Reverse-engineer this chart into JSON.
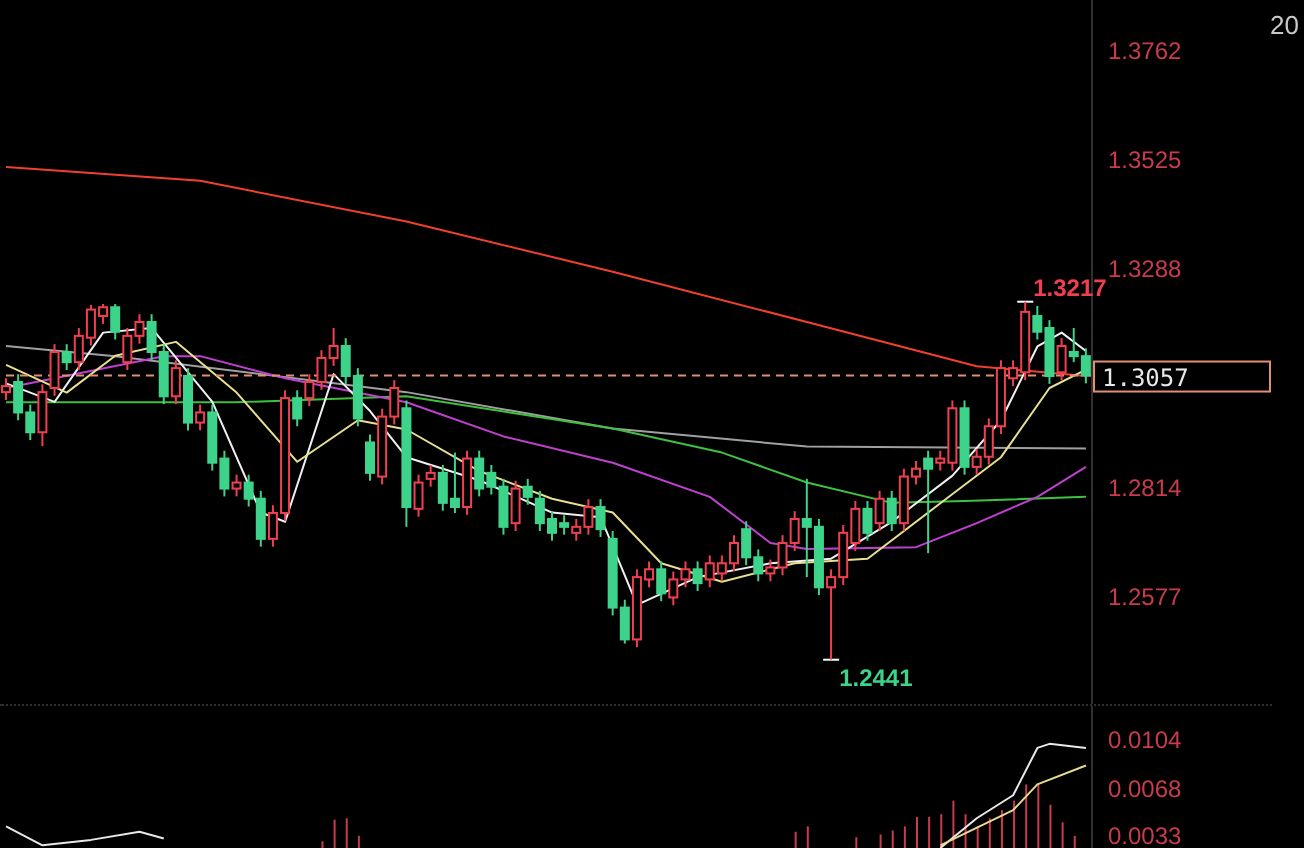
{
  "chart_data": [
    {
      "type": "candlestick",
      "categories": [
        null,
        null,
        null,
        null,
        null,
        null,
        null,
        null,
        null,
        null,
        null,
        null,
        null,
        null,
        null,
        null,
        null,
        null,
        null,
        null,
        null,
        null,
        null,
        null,
        null,
        null,
        null,
        null,
        null,
        null,
        null,
        null,
        null,
        null,
        null,
        null,
        null,
        null,
        null,
        null,
        null,
        null,
        null,
        null,
        null,
        null,
        null,
        null,
        null,
        null,
        null,
        null,
        null,
        null,
        null,
        null,
        null,
        null,
        null,
        null,
        null,
        null,
        null,
        null,
        null,
        null,
        null,
        null,
        null,
        null,
        null,
        null,
        null,
        null,
        null,
        null,
        null,
        null,
        null,
        null,
        null,
        null,
        null,
        null,
        null,
        null,
        null,
        null,
        null,
        null
      ],
      "ohlc": [
        [
          1.3021,
          1.3051,
          1.3004,
          1.3034
        ],
        [
          1.3043,
          1.306,
          1.296,
          1.2977
        ],
        [
          1.2977,
          1.2994,
          1.2917,
          1.2934
        ],
        [
          1.2934,
          1.3038,
          1.2904,
          1.3021
        ],
        [
          1.303,
          1.3125,
          1.3013,
          1.3108
        ],
        [
          1.3108,
          1.3125,
          1.3069,
          1.3086
        ],
        [
          1.3086,
          1.316,
          1.3069,
          1.3143
        ],
        [
          1.3139,
          1.321,
          1.3122,
          1.32
        ],
        [
          1.3186,
          1.3212,
          1.3169,
          1.3205
        ],
        [
          1.3205,
          1.3212,
          1.3135,
          1.3152
        ],
        [
          1.3086,
          1.316,
          1.3069,
          1.3143
        ],
        [
          1.3143,
          1.319,
          1.3126,
          1.3173
        ],
        [
          1.3173,
          1.319,
          1.3091,
          1.3108
        ],
        [
          1.3108,
          1.3125,
          1.2995,
          1.3012
        ],
        [
          1.3012,
          1.309,
          1.2995,
          1.3073
        ],
        [
          1.3056,
          1.3073,
          1.2938,
          1.2955
        ],
        [
          1.2955,
          1.2994,
          1.2938,
          1.2977
        ],
        [
          1.2977,
          1.2994,
          1.2851,
          1.2868
        ],
        [
          1.2877,
          1.2894,
          1.2795,
          1.2812
        ],
        [
          1.2812,
          1.2842,
          1.2795,
          1.2825
        ],
        [
          1.2825,
          1.2842,
          1.2773,
          1.279
        ],
        [
          1.279,
          1.2807,
          1.2686,
          1.2703
        ],
        [
          1.2703,
          1.2776,
          1.2686,
          1.2759
        ],
        [
          1.2759,
          1.3025,
          1.2742,
          1.3008
        ],
        [
          1.3008,
          1.3025,
          1.2947,
          1.2964
        ],
        [
          1.3008,
          1.306,
          1.2991,
          1.3043
        ],
        [
          1.3043,
          1.3112,
          1.3026,
          1.3095
        ],
        [
          1.3095,
          1.316,
          1.3078,
          1.3121
        ],
        [
          1.3121,
          1.3138,
          1.3039,
          1.3056
        ],
        [
          1.3056,
          1.3073,
          1.2947,
          1.2964
        ],
        [
          1.2912,
          1.2929,
          1.2829,
          1.2846
        ],
        [
          1.2838,
          1.2985,
          1.2821,
          1.2968
        ],
        [
          1.2968,
          1.3047,
          1.2951,
          1.303
        ],
        [
          1.2986,
          1.3003,
          1.2729,
          1.2772
        ],
        [
          1.2768,
          1.2842,
          1.2751,
          1.2825
        ],
        [
          1.2833,
          1.2863,
          1.2816,
          1.2846
        ],
        [
          1.2846,
          1.2863,
          1.2764,
          1.2781
        ],
        [
          1.279,
          1.289,
          1.2759,
          1.2772
        ],
        [
          1.2772,
          1.2894,
          1.2755,
          1.2877
        ],
        [
          1.2877,
          1.2894,
          1.2795,
          1.2812
        ],
        [
          1.2846,
          1.2863,
          1.2799,
          1.2816
        ],
        [
          1.2816,
          1.2833,
          1.2712,
          1.2729
        ],
        [
          1.2737,
          1.2829,
          1.272,
          1.2812
        ],
        [
          1.2816,
          1.2833,
          1.2777,
          1.2794
        ],
        [
          1.279,
          1.2807,
          1.272,
          1.2737
        ],
        [
          1.2746,
          1.2763,
          1.2699,
          1.2716
        ],
        [
          1.2737,
          1.2754,
          1.2712,
          1.2729
        ],
        [
          1.2716,
          1.2746,
          1.2699,
          1.2729
        ],
        [
          1.2729,
          1.2789,
          1.2712,
          1.2772
        ],
        [
          1.2772,
          1.2789,
          1.2707,
          1.2724
        ],
        [
          1.2703,
          1.272,
          1.2537,
          1.2554
        ],
        [
          1.2554,
          1.2571,
          1.2476,
          1.2485
        ],
        [
          1.2485,
          1.2637,
          1.2468,
          1.262
        ],
        [
          1.2615,
          1.2654,
          1.2598,
          1.2637
        ],
        [
          1.2637,
          1.2654,
          1.2568,
          1.2585
        ],
        [
          1.2576,
          1.2632,
          1.2559,
          1.2615
        ],
        [
          1.2615,
          1.2654,
          1.2598,
          1.2637
        ],
        [
          1.2637,
          1.2654,
          1.259,
          1.2607
        ],
        [
          1.2615,
          1.2667,
          1.2598,
          1.265
        ],
        [
          1.2628,
          1.2667,
          1.2611,
          1.265
        ],
        [
          1.265,
          1.2711,
          1.2633,
          1.2694
        ],
        [
          1.2724,
          1.2741,
          1.2646,
          1.2663
        ],
        [
          1.2663,
          1.268,
          1.2611,
          1.2628
        ],
        [
          1.2628,
          1.2658,
          1.2611,
          1.2641
        ],
        [
          1.2641,
          1.2711,
          1.2624,
          1.2694
        ],
        [
          1.2694,
          1.2763,
          1.2677,
          1.2746
        ],
        [
          1.2746,
          1.2833,
          1.262,
          1.2729
        ],
        [
          1.2729,
          1.2746,
          1.2581,
          1.2598
        ],
        [
          1.2598,
          1.2637,
          1.2441,
          1.262
        ],
        [
          1.262,
          1.2733,
          1.2603,
          1.2716
        ],
        [
          1.2694,
          1.2785,
          1.2677,
          1.2768
        ],
        [
          1.2768,
          1.2785,
          1.2699,
          1.2716
        ],
        [
          1.2737,
          1.2807,
          1.272,
          1.279
        ],
        [
          1.279,
          1.2807,
          1.272,
          1.2737
        ],
        [
          1.2737,
          1.2855,
          1.272,
          1.2838
        ],
        [
          1.2838,
          1.2872,
          1.2821,
          1.2855
        ],
        [
          1.2877,
          1.2894,
          1.2672,
          1.2855
        ],
        [
          1.2868,
          1.2894,
          1.2851,
          1.2877
        ],
        [
          1.2868,
          1.3003,
          1.2851,
          1.2986
        ],
        [
          1.2986,
          1.3003,
          1.2842,
          1.2859
        ],
        [
          1.2859,
          1.2898,
          1.2842,
          1.2881
        ],
        [
          1.2881,
          1.2964,
          1.2864,
          1.2947
        ],
        [
          1.2947,
          1.309,
          1.293,
          1.3073
        ],
        [
          1.3051,
          1.309,
          1.3034,
          1.3073
        ],
        [
          1.3064,
          1.3217,
          1.3047,
          1.3195
        ],
        [
          1.3186,
          1.3208,
          1.3135,
          1.3152
        ],
        [
          1.316,
          1.3177,
          1.3039,
          1.3056
        ],
        [
          1.3064,
          1.3138,
          1.3047,
          1.3121
        ],
        [
          1.3108,
          1.316,
          1.3086,
          1.3099
        ],
        [
          1.3099,
          1.3116,
          1.304,
          1.3057
        ]
      ],
      "colors": [
        "#f0404f",
        "#3ed38a",
        "#3ed38a",
        "#f0404f",
        "#f0404f",
        "#3ed38a",
        "#f0404f",
        "#f0404f",
        "#f0404f",
        "#3ed38a",
        "#f0404f",
        "#f0404f",
        "#3ed38a",
        "#3ed38a",
        "#f0404f",
        "#3ed38a",
        "#f0404f",
        "#3ed38a",
        "#3ed38a",
        "#f0404f",
        "#3ed38a",
        "#3ed38a",
        "#f0404f",
        "#f0404f",
        "#3ed38a",
        "#f0404f",
        "#f0404f",
        "#f0404f",
        "#3ed38a",
        "#3ed38a",
        "#3ed38a",
        "#f0404f",
        "#f0404f",
        "#3ed38a",
        "#f0404f",
        "#f0404f",
        "#3ed38a",
        "#3ed38a",
        "#f0404f",
        "#3ed38a",
        "#3ed38a",
        "#3ed38a",
        "#f0404f",
        "#3ed38a",
        "#3ed38a",
        "#3ed38a",
        "#3ed38a",
        "#f0404f",
        "#f0404f",
        "#3ed38a",
        "#3ed38a",
        "#3ed38a",
        "#f0404f",
        "#f0404f",
        "#3ed38a",
        "#f0404f",
        "#f0404f",
        "#3ed38a",
        "#f0404f",
        "#f0404f",
        "#f0404f",
        "#3ed38a",
        "#3ed38a",
        "#f0404f",
        "#f0404f",
        "#f0404f",
        "#3ed38a",
        "#3ed38a",
        "#f0404f",
        "#f0404f",
        "#f0404f",
        "#3ed38a",
        "#f0404f",
        "#3ed38a",
        "#f0404f",
        "#f0404f",
        "#3ed38a",
        "#f0404f",
        "#f0404f",
        "#3ed38a",
        "#f0404f",
        "#f0404f",
        "#f0404f",
        "#f0404f",
        "#f0404f",
        "#3ed38a",
        "#3ed38a",
        "#f0404f",
        "#3ed38a",
        "#3ed38a"
      ],
      "series": [
        {
          "type": "line",
          "color": "#f04030",
          "values": [
            1.3509,
            null,
            null,
            null,
            null,
            null,
            null,
            null,
            null,
            null,
            null,
            null,
            null,
            null,
            null,
            null,
            1.3479,
            null,
            null,
            null,
            null,
            null,
            null,
            null,
            null,
            null,
            null,
            null,
            null,
            null,
            null,
            null,
            null,
            1.3391,
            null,
            null,
            null,
            null,
            null,
            null,
            null,
            null,
            null,
            null,
            null,
            null,
            null,
            null,
            null,
            null,
            1.3282,
            null,
            null,
            null,
            null,
            null,
            null,
            null,
            null,
            null,
            null,
            null,
            null,
            null,
            null,
            null,
            1.3173,
            null,
            null,
            null,
            null,
            null,
            null,
            null,
            null,
            null,
            null,
            null,
            null,
            null,
            1.3077,
            null,
            null,
            null,
            null,
            null,
            null,
            null,
            null,
            1.3056
          ]
        },
        {
          "type": "line",
          "color": "#a0a0a0",
          "values": [
            1.3121,
            null,
            null,
            null,
            null,
            null,
            null,
            null,
            null,
            1.3099,
            null,
            null,
            null,
            null,
            null,
            null,
            null,
            null,
            null,
            null,
            null,
            null,
            null,
            null,
            null,
            null,
            null,
            null,
            null,
            null,
            null,
            null,
            null,
            1.3021,
            null,
            null,
            null,
            null,
            null,
            null,
            null,
            null,
            null,
            null,
            null,
            null,
            null,
            null,
            null,
            null,
            1.2942,
            null,
            null,
            null,
            null,
            null,
            null,
            null,
            null,
            null,
            null,
            null,
            null,
            null,
            null,
            null,
            1.2903,
            null,
            null,
            null,
            null,
            null,
            null,
            null,
            null,
            null,
            null,
            null,
            null,
            null,
            null,
            null,
            null,
            null,
            null,
            null,
            null,
            null,
            null,
            1.2899
          ]
        },
        {
          "type": "line",
          "color": "#40c040",
          "values": [
            1.2999,
            null,
            null,
            null,
            null,
            null,
            null,
            null,
            null,
            null,
            null,
            null,
            null,
            null,
            null,
            null,
            null,
            null,
            null,
            1.2999,
            null,
            null,
            null,
            null,
            null,
            null,
            null,
            null,
            null,
            null,
            null,
            null,
            null,
            1.3012,
            null,
            null,
            null,
            null,
            null,
            null,
            null,
            null,
            null,
            null,
            null,
            null,
            null,
            null,
            null,
            null,
            1.2942,
            null,
            null,
            null,
            null,
            null,
            null,
            null,
            null,
            1.289,
            null,
            null,
            null,
            null,
            null,
            null,
            1.2825,
            null,
            null,
            null,
            null,
            null,
            null,
            1.2781,
            null,
            null,
            null,
            null,
            null,
            1.2785,
            null,
            null,
            null,
            null,
            null,
            null,
            null,
            null,
            null,
            1.2794
          ]
        },
        {
          "type": "line",
          "color": "#c040d0",
          "values": [
            1.303,
            null,
            null,
            null,
            null,
            null,
            null,
            null,
            null,
            null,
            null,
            null,
            null,
            1.3099,
            null,
            null,
            1.3099,
            null,
            null,
            null,
            null,
            null,
            null,
            1.3051,
            null,
            null,
            null,
            null,
            null,
            null,
            null,
            null,
            null,
            1.2999,
            null,
            null,
            null,
            null,
            null,
            null,
            null,
            1.2925,
            null,
            null,
            null,
            null,
            null,
            null,
            null,
            null,
            1.2868,
            null,
            null,
            null,
            null,
            null,
            null,
            null,
            1.2794,
            null,
            null,
            null,
            null,
            1.2694,
            null,
            null,
            1.2681,
            null,
            null,
            null,
            null,
            null,
            null,
            null,
            null,
            1.2685,
            null,
            null,
            null,
            null,
            1.2737,
            null,
            null,
            null,
            null,
            1.2794,
            null,
            null,
            null,
            1.2859
          ]
        },
        {
          "type": "line",
          "color": "#f0f0f0",
          "values": [
            1.304,
            null,
            null,
            null,
            1.3,
            null,
            null,
            null,
            1.315,
            null,
            null,
            null,
            1.316,
            null,
            null,
            null,
            null,
            1.3,
            null,
            null,
            null,
            1.276,
            null,
            1.274,
            null,
            null,
            null,
            1.306,
            null,
            null,
            1.298,
            null,
            null,
            1.288,
            null,
            null,
            null,
            null,
            null,
            1.283,
            null,
            null,
            null,
            null,
            null,
            1.276,
            null,
            null,
            null,
            1.275,
            null,
            null,
            1.256,
            null,
            null,
            null,
            null,
            1.262,
            null,
            null,
            null,
            null,
            null,
            1.265,
            null,
            null,
            null,
            null,
            1.266,
            null,
            null,
            null,
            null,
            1.274,
            null,
            null,
            null,
            null,
            1.284,
            null,
            null,
            null,
            1.296,
            null,
            null,
            1.312,
            null,
            1.315,
            null,
            1.311
          ]
        },
        {
          "type": "line",
          "color": "#e8e090",
          "values": [
            1.308,
            null,
            null,
            null,
            null,
            1.302,
            null,
            null,
            null,
            1.31,
            null,
            null,
            null,
            null,
            1.313,
            null,
            null,
            null,
            null,
            1.302,
            null,
            null,
            null,
            null,
            1.287,
            null,
            null,
            null,
            null,
            1.296,
            null,
            null,
            null,
            1.294,
            null,
            null,
            null,
            null,
            null,
            1.285,
            null,
            null,
            null,
            null,
            null,
            1.279,
            null,
            null,
            null,
            null,
            1.276,
            null,
            null,
            null,
            1.265,
            null,
            null,
            null,
            null,
            1.261,
            null,
            null,
            null,
            null,
            null,
            1.265,
            null,
            null,
            null,
            null,
            null,
            1.266,
            null,
            null,
            null,
            null,
            null,
            1.278,
            null,
            null,
            null,
            null,
            1.288,
            null,
            null,
            null,
            1.303,
            null,
            null,
            1.307
          ]
        }
      ],
      "ylim": [
        1.2345,
        1.3871
      ],
      "yticks": [
        1.2577,
        1.2814,
        1.3288,
        1.3525,
        1.3762
      ],
      "tick_labels": "y",
      "ref_lines": [
        {
          "axis": "y",
          "value": 1.3057,
          "label": "1.3057",
          "color": "#e09070",
          "line_style": "dashed"
        }
      ],
      "annotations": [
        "1.3217",
        "1.2441",
        "20"
      ]
    },
    {
      "type": "bar",
      "categories": [
        null,
        null,
        null,
        null,
        null,
        null,
        null,
        null,
        null,
        null,
        null,
        null,
        null,
        null,
        null,
        null,
        null,
        null,
        null,
        null,
        null,
        null,
        null,
        null,
        null,
        null,
        null,
        null,
        null,
        null,
        null,
        null,
        null,
        null,
        null,
        null,
        null,
        null,
        null,
        null,
        null,
        null,
        null,
        null,
        null,
        null,
        null,
        null,
        null,
        null,
        null,
        null,
        null,
        null,
        null,
        null,
        null,
        null,
        null,
        null,
        null,
        null,
        null,
        null,
        null,
        null,
        null,
        null,
        null,
        null,
        null,
        null,
        null,
        null,
        null,
        null,
        null,
        null,
        null,
        null,
        null,
        null,
        null,
        null,
        null,
        null,
        null,
        null,
        null,
        null
      ],
      "series": [
        {
          "type": "bar",
          "color": "#c83c4c",
          "values": [
            null,
            null,
            null,
            null,
            null,
            null,
            null,
            null,
            null,
            null,
            null,
            null,
            null,
            null,
            null,
            null,
            null,
            null,
            null,
            null,
            null,
            null,
            null,
            null,
            null,
            null,
            0.0029,
            0.0045,
            0.0046,
            0.0033,
            null,
            null,
            null,
            null,
            null,
            null,
            null,
            null,
            null,
            null,
            null,
            null,
            null,
            null,
            null,
            null,
            null,
            null,
            null,
            null,
            null,
            null,
            null,
            null,
            null,
            null,
            null,
            null,
            null,
            null,
            null,
            null,
            null,
            null,
            null,
            0.0036,
            0.004,
            null,
            null,
            null,
            0.0032,
            null,
            0.0034,
            0.0037,
            0.004,
            0.0047,
            0.0047,
            0.0049,
            0.0059,
            0.0049,
            0.004,
            0.0046,
            0.0052,
            0.0059,
            0.0071,
            0.0071,
            0.0056,
            0.0043,
            0.0033,
            null
          ]
        },
        {
          "type": "line",
          "color": "#e8e8e8",
          "values": [
            0.004,
            null,
            null,
            0.0026,
            null,
            null,
            null,
            0.003,
            null,
            null,
            null,
            0.0036,
            null,
            0.0031,
            null,
            null,
            null,
            null,
            null,
            null,
            null,
            null,
            null,
            null,
            null,
            null,
            null,
            null,
            null,
            null,
            null,
            null,
            null,
            null,
            null,
            null,
            null,
            null,
            null,
            null,
            null,
            null,
            null,
            null,
            null,
            null,
            null,
            null,
            null,
            null,
            null,
            null,
            null,
            null,
            null,
            null,
            null,
            null,
            null,
            null,
            null,
            null,
            null,
            null,
            null,
            null,
            null,
            null,
            null,
            null,
            null,
            null,
            null,
            null,
            null,
            null,
            null,
            null,
            null,
            null,
            null,
            null,
            null,
            null,
            null,
            null,
            null,
            null,
            null,
            null
          ]
        },
        {
          "type": "line",
          "color": "#e8e8e8",
          "values": [
            null,
            null,
            null,
            null,
            null,
            null,
            null,
            null,
            null,
            null,
            null,
            null,
            null,
            null,
            null,
            null,
            null,
            null,
            null,
            null,
            null,
            null,
            null,
            null,
            null,
            null,
            null,
            null,
            null,
            null,
            null,
            null,
            null,
            null,
            null,
            null,
            null,
            null,
            null,
            null,
            null,
            null,
            null,
            null,
            null,
            null,
            null,
            null,
            null,
            null,
            null,
            null,
            null,
            null,
            null,
            null,
            null,
            null,
            null,
            null,
            null,
            null,
            null,
            null,
            null,
            null,
            null,
            null,
            null,
            null,
            null,
            null,
            null,
            null,
            null,
            null,
            null,
            0.0024,
            null,
            null,
            0.0046,
            null,
            null,
            0.0063,
            null,
            0.0098,
            0.0101,
            null,
            null,
            0.0098
          ]
        },
        {
          "type": "line",
          "color": "#e8d890",
          "values": [
            null,
            null,
            null,
            null,
            null,
            null,
            null,
            null,
            null,
            null,
            null,
            null,
            null,
            null,
            null,
            null,
            null,
            null,
            null,
            null,
            null,
            null,
            null,
            null,
            null,
            null,
            null,
            null,
            null,
            null,
            null,
            null,
            null,
            null,
            null,
            null,
            null,
            null,
            null,
            null,
            null,
            null,
            null,
            null,
            null,
            null,
            null,
            null,
            null,
            null,
            null,
            null,
            null,
            null,
            null,
            null,
            null,
            null,
            null,
            null,
            null,
            null,
            null,
            null,
            null,
            null,
            null,
            null,
            null,
            null,
            null,
            null,
            null,
            null,
            null,
            null,
            null,
            0.0026,
            null,
            null,
            null,
            null,
            null,
            0.0052,
            null,
            0.0071,
            null,
            null,
            null,
            0.0085
          ]
        }
      ],
      "ylim": [
        0.0024,
        0.0129
      ],
      "yticks": [
        0.0033,
        0.0068,
        0.0104
      ],
      "tick_labels": "y"
    }
  ]
}
